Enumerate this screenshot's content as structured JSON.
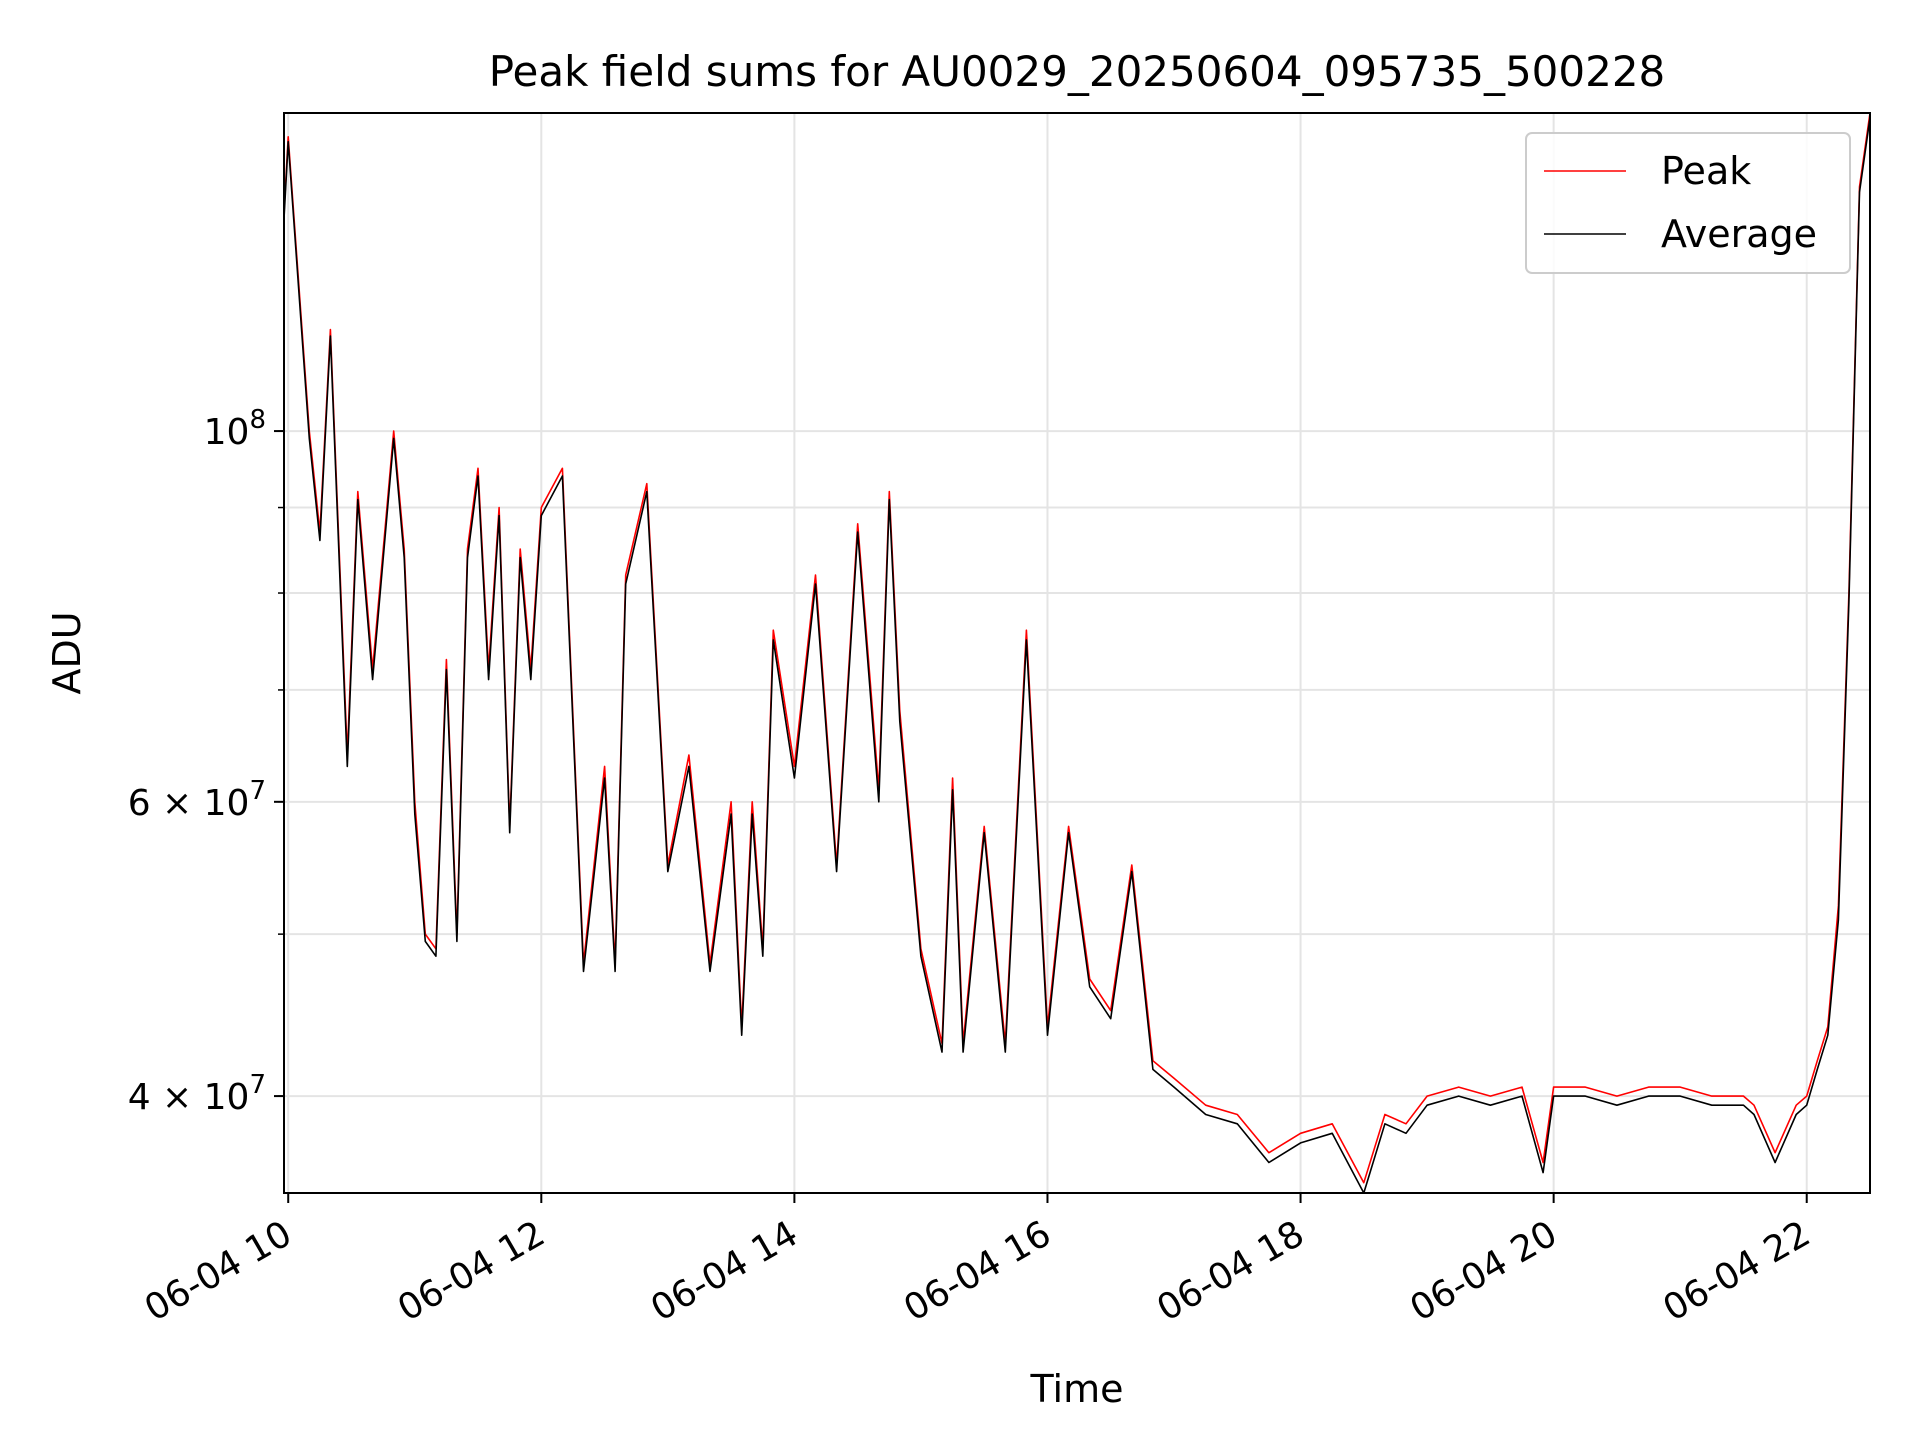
{
  "chart_data": {
    "type": "line",
    "title": "Peak field sums for AU0029_20250604_095735_500228",
    "xlabel": "Time",
    "ylabel": "ADU",
    "yscale": "log",
    "xlim": [
      "2025-06-04 09:58",
      "2025-06-04 22:30"
    ],
    "ylim": [
      35000000,
      155000000
    ],
    "x_ticks": [
      "06-04 10",
      "06-04 12",
      "06-04 14",
      "06-04 16",
      "06-04 18",
      "06-04 20",
      "06-04 22"
    ],
    "y_major_ticks": [
      {
        "value": 100000000,
        "mantissa": "",
        "exponent": "8"
      },
      {
        "value": 60000000,
        "mantissa": "6",
        "exponent": "7"
      },
      {
        "value": 40000000,
        "mantissa": "4",
        "exponent": "7"
      }
    ],
    "grid": true,
    "legend_position": "upper right",
    "series": [
      {
        "name": "Peak",
        "color": "#ff0000",
        "x": [
          "2025-06-04 09:58",
          "2025-06-04 10:00",
          "2025-06-04 10:10",
          "2025-06-04 10:15",
          "2025-06-04 10:20",
          "2025-06-04 10:28",
          "2025-06-04 10:33",
          "2025-06-04 10:40",
          "2025-06-04 10:50",
          "2025-06-04 10:55",
          "2025-06-04 11:00",
          "2025-06-04 11:05",
          "2025-06-04 11:10",
          "2025-06-04 11:15",
          "2025-06-04 11:20",
          "2025-06-04 11:25",
          "2025-06-04 11:30",
          "2025-06-04 11:35",
          "2025-06-04 11:40",
          "2025-06-04 11:45",
          "2025-06-04 11:50",
          "2025-06-04 11:55",
          "2025-06-04 12:00",
          "2025-06-04 12:10",
          "2025-06-04 12:20",
          "2025-06-04 12:30",
          "2025-06-04 12:35",
          "2025-06-04 12:40",
          "2025-06-04 12:50",
          "2025-06-04 13:00",
          "2025-06-04 13:10",
          "2025-06-04 13:20",
          "2025-06-04 13:30",
          "2025-06-04 13:35",
          "2025-06-04 13:40",
          "2025-06-04 13:45",
          "2025-06-04 13:50",
          "2025-06-04 14:00",
          "2025-06-04 14:10",
          "2025-06-04 14:20",
          "2025-06-04 14:30",
          "2025-06-04 14:40",
          "2025-06-04 14:45",
          "2025-06-04 14:50",
          "2025-06-04 15:00",
          "2025-06-04 15:10",
          "2025-06-04 15:15",
          "2025-06-04 15:20",
          "2025-06-04 15:30",
          "2025-06-04 15:40",
          "2025-06-04 15:50",
          "2025-06-04 16:00",
          "2025-06-04 16:10",
          "2025-06-04 16:20",
          "2025-06-04 16:30",
          "2025-06-04 16:40",
          "2025-06-04 16:50",
          "2025-06-04 17:00",
          "2025-06-04 17:15",
          "2025-06-04 17:30",
          "2025-06-04 17:45",
          "2025-06-04 18:00",
          "2025-06-04 18:15",
          "2025-06-04 18:30",
          "2025-06-04 18:40",
          "2025-06-04 18:50",
          "2025-06-04 19:00",
          "2025-06-04 19:15",
          "2025-06-04 19:30",
          "2025-06-04 19:45",
          "2025-06-04 19:55",
          "2025-06-04 20:00",
          "2025-06-04 20:15",
          "2025-06-04 20:30",
          "2025-06-04 20:45",
          "2025-06-04 21:00",
          "2025-06-04 21:15",
          "2025-06-04 21:30",
          "2025-06-04 21:35",
          "2025-06-04 21:45",
          "2025-06-04 21:55",
          "2025-06-04 22:00",
          "2025-06-04 22:05",
          "2025-06-04 22:10",
          "2025-06-04 22:15",
          "2025-06-04 22:20",
          "2025-06-04 22:25",
          "2025-06-04 22:30"
        ],
        "y": [
          135000000,
          150000000,
          100000000,
          87000000,
          115000000,
          64000000,
          92000000,
          72000000,
          100000000,
          85000000,
          60000000,
          50000000,
          49000000,
          73000000,
          50000000,
          85000000,
          95000000,
          72000000,
          90000000,
          58000000,
          85000000,
          72000000,
          90000000,
          95000000,
          48000000,
          63000000,
          48000000,
          82000000,
          93000000,
          55000000,
          64000000,
          48000000,
          60000000,
          44000000,
          60000000,
          49000000,
          76000000,
          63000000,
          82000000,
          55000000,
          88000000,
          61000000,
          92000000,
          68000000,
          49000000,
          43000000,
          62000000,
          43000000,
          58000000,
          43000000,
          76000000,
          44000000,
          58000000,
          47000000,
          45000000,
          55000000,
          42000000,
          41000000,
          39500000,
          39000000,
          37000000,
          38000000,
          38500000,
          35500000,
          39000000,
          38500000,
          40000000,
          40500000,
          40000000,
          40500000,
          36500000,
          40500000,
          40500000,
          40000000,
          40500000,
          40500000,
          40000000,
          40000000,
          39500000,
          37000000,
          39500000,
          40000000,
          42000000,
          44000000,
          52000000,
          80000000,
          140000000,
          155000000
        ]
      },
      {
        "name": "Average",
        "color": "#000000",
        "x": [
          "2025-06-04 09:58",
          "2025-06-04 10:00",
          "2025-06-04 10:10",
          "2025-06-04 10:15",
          "2025-06-04 10:20",
          "2025-06-04 10:28",
          "2025-06-04 10:33",
          "2025-06-04 10:40",
          "2025-06-04 10:50",
          "2025-06-04 10:55",
          "2025-06-04 11:00",
          "2025-06-04 11:05",
          "2025-06-04 11:10",
          "2025-06-04 11:15",
          "2025-06-04 11:20",
          "2025-06-04 11:25",
          "2025-06-04 11:30",
          "2025-06-04 11:35",
          "2025-06-04 11:40",
          "2025-06-04 11:45",
          "2025-06-04 11:50",
          "2025-06-04 11:55",
          "2025-06-04 12:00",
          "2025-06-04 12:10",
          "2025-06-04 12:20",
          "2025-06-04 12:30",
          "2025-06-04 12:35",
          "2025-06-04 12:40",
          "2025-06-04 12:50",
          "2025-06-04 13:00",
          "2025-06-04 13:10",
          "2025-06-04 13:20",
          "2025-06-04 13:30",
          "2025-06-04 13:35",
          "2025-06-04 13:40",
          "2025-06-04 13:45",
          "2025-06-04 13:50",
          "2025-06-04 14:00",
          "2025-06-04 14:10",
          "2025-06-04 14:20",
          "2025-06-04 14:30",
          "2025-06-04 14:40",
          "2025-06-04 14:45",
          "2025-06-04 14:50",
          "2025-06-04 15:00",
          "2025-06-04 15:10",
          "2025-06-04 15:15",
          "2025-06-04 15:20",
          "2025-06-04 15:30",
          "2025-06-04 15:40",
          "2025-06-04 15:50",
          "2025-06-04 16:00",
          "2025-06-04 16:10",
          "2025-06-04 16:20",
          "2025-06-04 16:30",
          "2025-06-04 16:40",
          "2025-06-04 16:50",
          "2025-06-04 17:00",
          "2025-06-04 17:15",
          "2025-06-04 17:30",
          "2025-06-04 17:45",
          "2025-06-04 18:00",
          "2025-06-04 18:15",
          "2025-06-04 18:30",
          "2025-06-04 18:40",
          "2025-06-04 18:50",
          "2025-06-04 19:00",
          "2025-06-04 19:15",
          "2025-06-04 19:30",
          "2025-06-04 19:45",
          "2025-06-04 19:55",
          "2025-06-04 20:00",
          "2025-06-04 20:15",
          "2025-06-04 20:30",
          "2025-06-04 20:45",
          "2025-06-04 21:00",
          "2025-06-04 21:15",
          "2025-06-04 21:30",
          "2025-06-04 21:35",
          "2025-06-04 21:45",
          "2025-06-04 21:55",
          "2025-06-04 22:00",
          "2025-06-04 22:05",
          "2025-06-04 22:10",
          "2025-06-04 22:15",
          "2025-06-04 22:20",
          "2025-06-04 22:25",
          "2025-06-04 22:30"
        ],
        "y": [
          134000000,
          149000000,
          99000000,
          86000000,
          114000000,
          63000000,
          91000000,
          71000000,
          99000000,
          84000000,
          59000000,
          49500000,
          48500000,
          72000000,
          49500000,
          84000000,
          94000000,
          71000000,
          89000000,
          57500000,
          84000000,
          71000000,
          89000000,
          94000000,
          47500000,
          62000000,
          47500000,
          81000000,
          92000000,
          54500000,
          63000000,
          47500000,
          59000000,
          43500000,
          59000000,
          48500000,
          75000000,
          62000000,
          81000000,
          54500000,
          87000000,
          60000000,
          91000000,
          67000000,
          48500000,
          42500000,
          61000000,
          42500000,
          57500000,
          42500000,
          75000000,
          43500000,
          57500000,
          46500000,
          44500000,
          54500000,
          41500000,
          40500000,
          39000000,
          38500000,
          36500000,
          37500000,
          38000000,
          35000000,
          38500000,
          38000000,
          39500000,
          40000000,
          39500000,
          40000000,
          36000000,
          40000000,
          40000000,
          39500000,
          40000000,
          40000000,
          39500000,
          39500000,
          39000000,
          36500000,
          39000000,
          39500000,
          41500000,
          43500000,
          51000000,
          79000000,
          139000000,
          154000000
        ]
      }
    ]
  }
}
